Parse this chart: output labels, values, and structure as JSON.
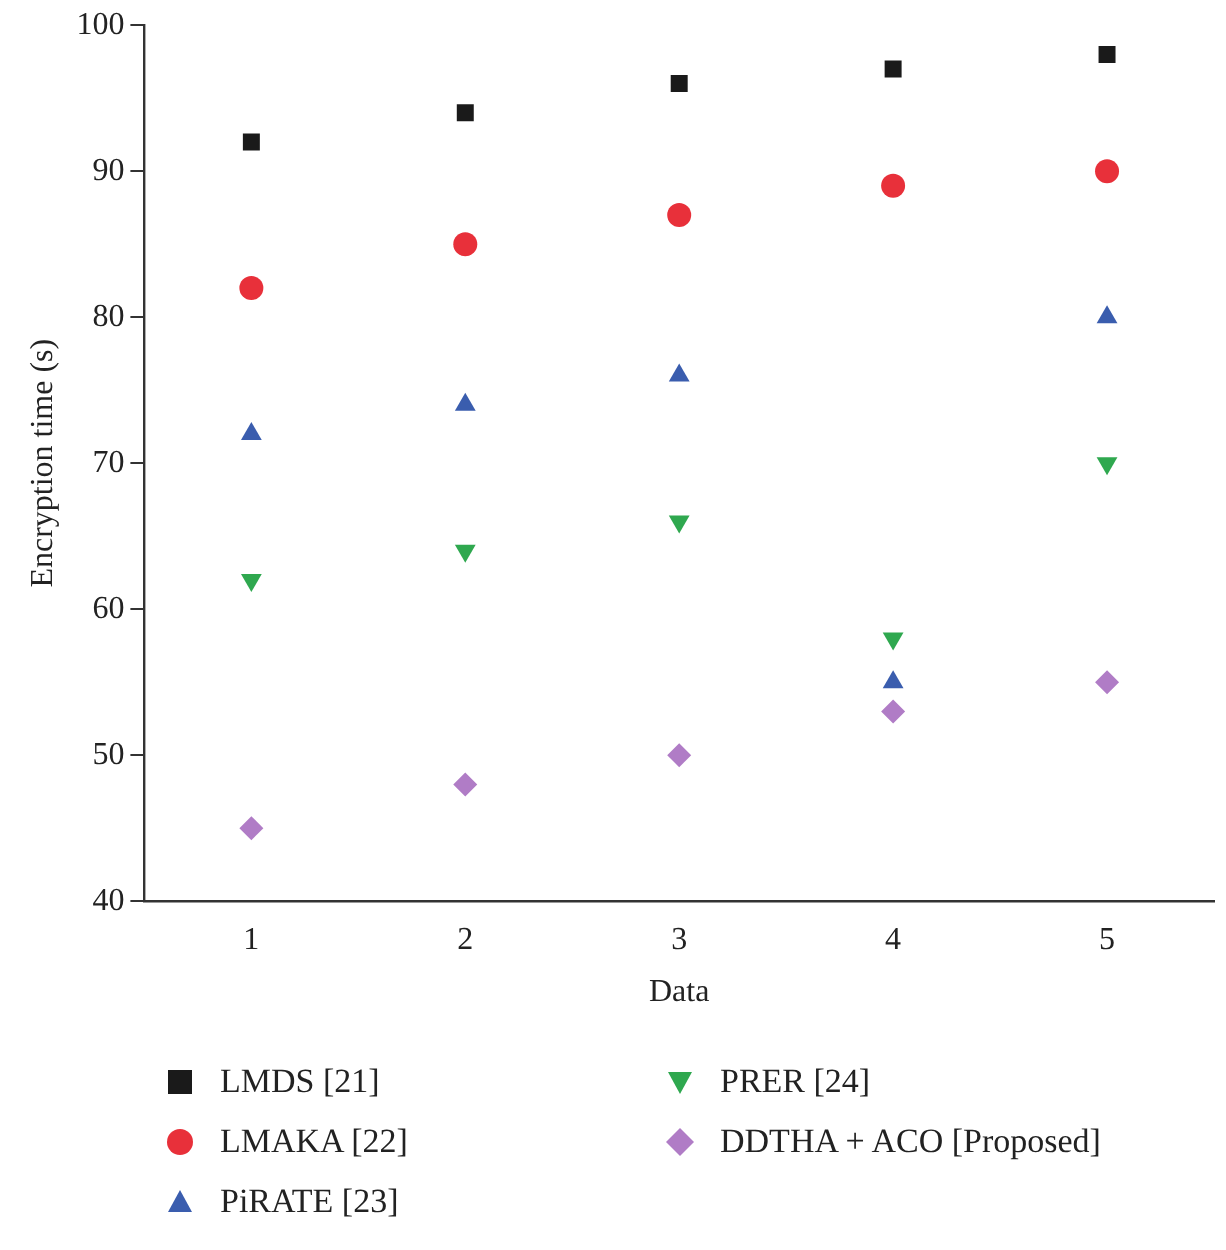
{
  "chart_data": {
    "type": "scatter",
    "xlabel": "Data",
    "ylabel": "Encryption time (s)",
    "x": [
      1,
      2,
      3,
      4,
      5
    ],
    "xlim": [
      0.5,
      5.5
    ],
    "xticks": [
      1,
      2,
      3,
      4,
      5
    ],
    "ylim": [
      40,
      100
    ],
    "yticks": [
      40,
      50,
      60,
      70,
      80,
      90,
      100
    ],
    "grid": false,
    "legend": "bottom",
    "series": [
      {
        "name": "LMDS [21]",
        "color": "#1a1a1a",
        "marker": "square",
        "values": [
          92,
          94,
          96,
          97,
          98
        ]
      },
      {
        "name": "LMAKA [22]",
        "color": "#e8303a",
        "marker": "circle",
        "values": [
          82,
          85,
          87,
          89,
          90
        ]
      },
      {
        "name": "PiRATE [23]",
        "color": "#3a5dae",
        "marker": "triangle",
        "values": [
          72,
          74,
          76,
          55,
          80
        ]
      },
      {
        "name": "PRER [24]",
        "color": "#2fa84f",
        "marker": "triangle-down",
        "values": [
          62,
          64,
          66,
          58,
          70
        ]
      },
      {
        "name": "DDTHA + ACO [Proposed]",
        "color": "#b07cc6",
        "marker": "diamond",
        "values": [
          45,
          48,
          50,
          53,
          55
        ]
      }
    ]
  }
}
